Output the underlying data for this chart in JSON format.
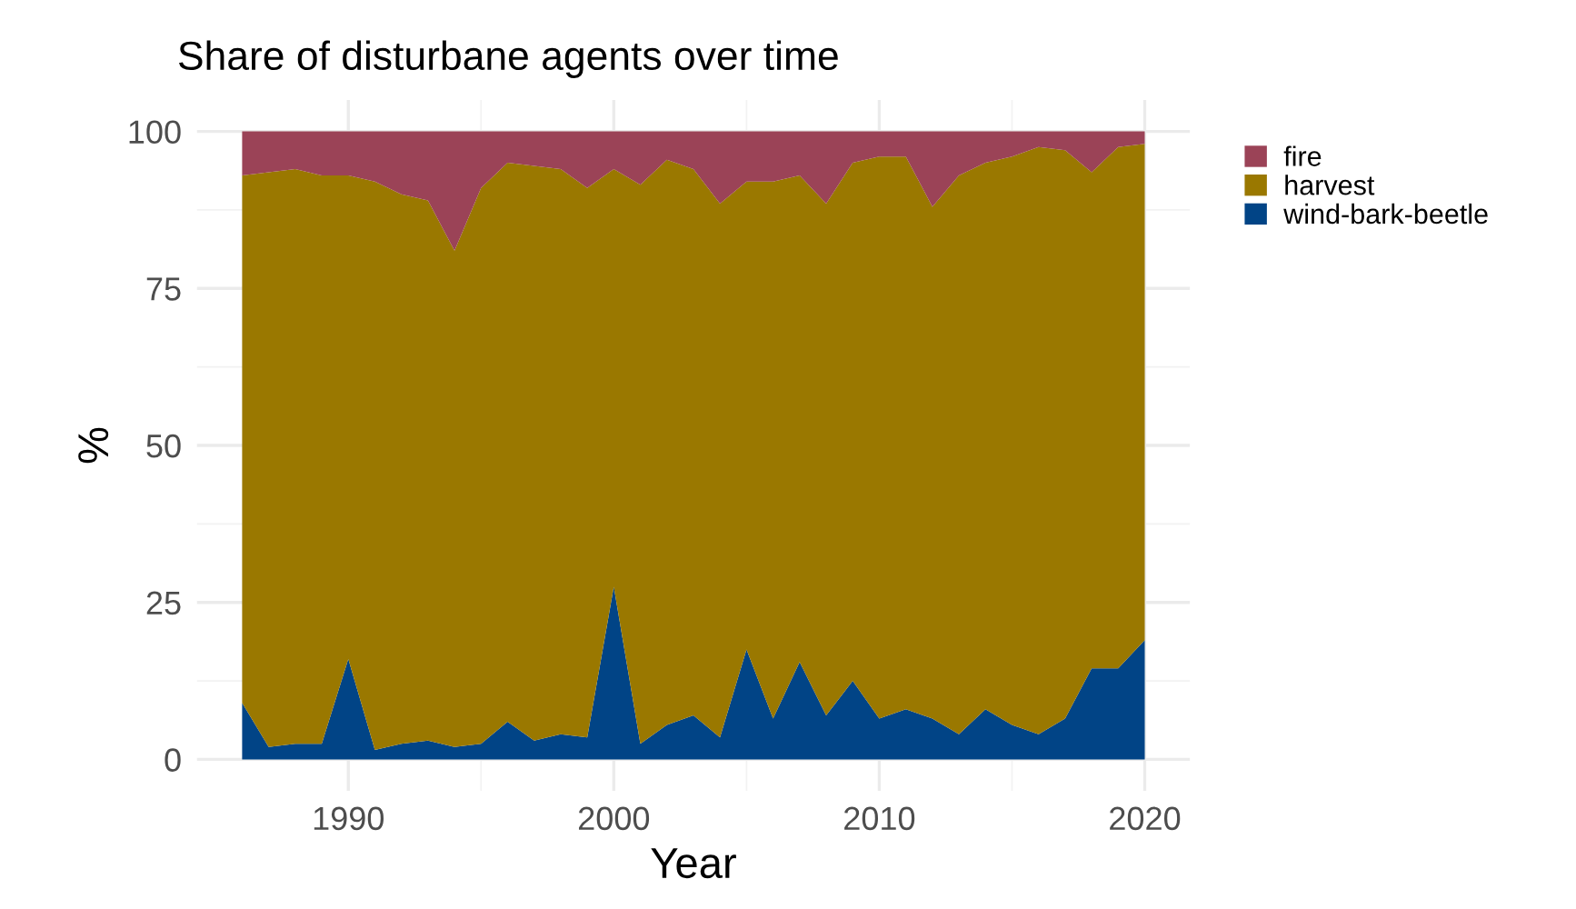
{
  "chart_data": {
    "type": "area",
    "title": "Share of disturbane agents over time",
    "xlabel": "Year",
    "ylabel": "%",
    "stacked": true,
    "x": [
      1986,
      1987,
      1988,
      1989,
      1990,
      1991,
      1992,
      1993,
      1994,
      1995,
      1996,
      1997,
      1998,
      1999,
      2000,
      2001,
      2002,
      2003,
      2004,
      2005,
      2006,
      2007,
      2008,
      2009,
      2010,
      2011,
      2012,
      2013,
      2014,
      2015,
      2016,
      2017,
      2018,
      2019,
      2020
    ],
    "series": [
      {
        "name": "wind-bark-beetle",
        "color": "#014486",
        "values": [
          9,
          2,
          2.5,
          2.5,
          16,
          1.5,
          2.5,
          3,
          2,
          2.5,
          6,
          3,
          4,
          3.5,
          27.5,
          2.5,
          5.5,
          7,
          3.5,
          17.5,
          6.5,
          15.5,
          7,
          12.5,
          6.5,
          8,
          6.5,
          4,
          8,
          5.5,
          4,
          6.5,
          14.5,
          14.5,
          19
        ]
      },
      {
        "name": "harvest",
        "color": "#9a7800",
        "values": [
          84,
          91.5,
          91.5,
          90.5,
          77,
          90.5,
          87.5,
          86,
          79,
          88.5,
          89,
          91.5,
          90,
          87.5,
          66.5,
          89,
          90,
          87,
          85,
          74.5,
          85.5,
          77.5,
          81.5,
          82.5,
          89.5,
          88,
          81.5,
          89,
          87,
          90.5,
          93.5,
          90.5,
          79,
          83,
          79
        ]
      },
      {
        "name": "fire",
        "color": "#9b4357",
        "values": [
          7,
          6.5,
          6,
          7,
          7,
          8,
          10,
          11,
          19,
          9,
          5,
          5.5,
          6,
          9,
          6,
          8.5,
          4.5,
          6,
          11.5,
          8,
          8,
          7,
          11.5,
          5,
          4,
          4,
          12,
          7,
          5,
          4,
          2.5,
          3,
          6.5,
          2.5,
          2
        ]
      }
    ],
    "xlim": [
      1984.3,
      2021.7
    ],
    "xticks": [
      1990,
      2000,
      2010,
      2020
    ],
    "ylim": [
      -5,
      105
    ],
    "yticks": [
      0,
      25,
      50,
      75,
      100
    ],
    "grid": true,
    "legend": "right"
  }
}
